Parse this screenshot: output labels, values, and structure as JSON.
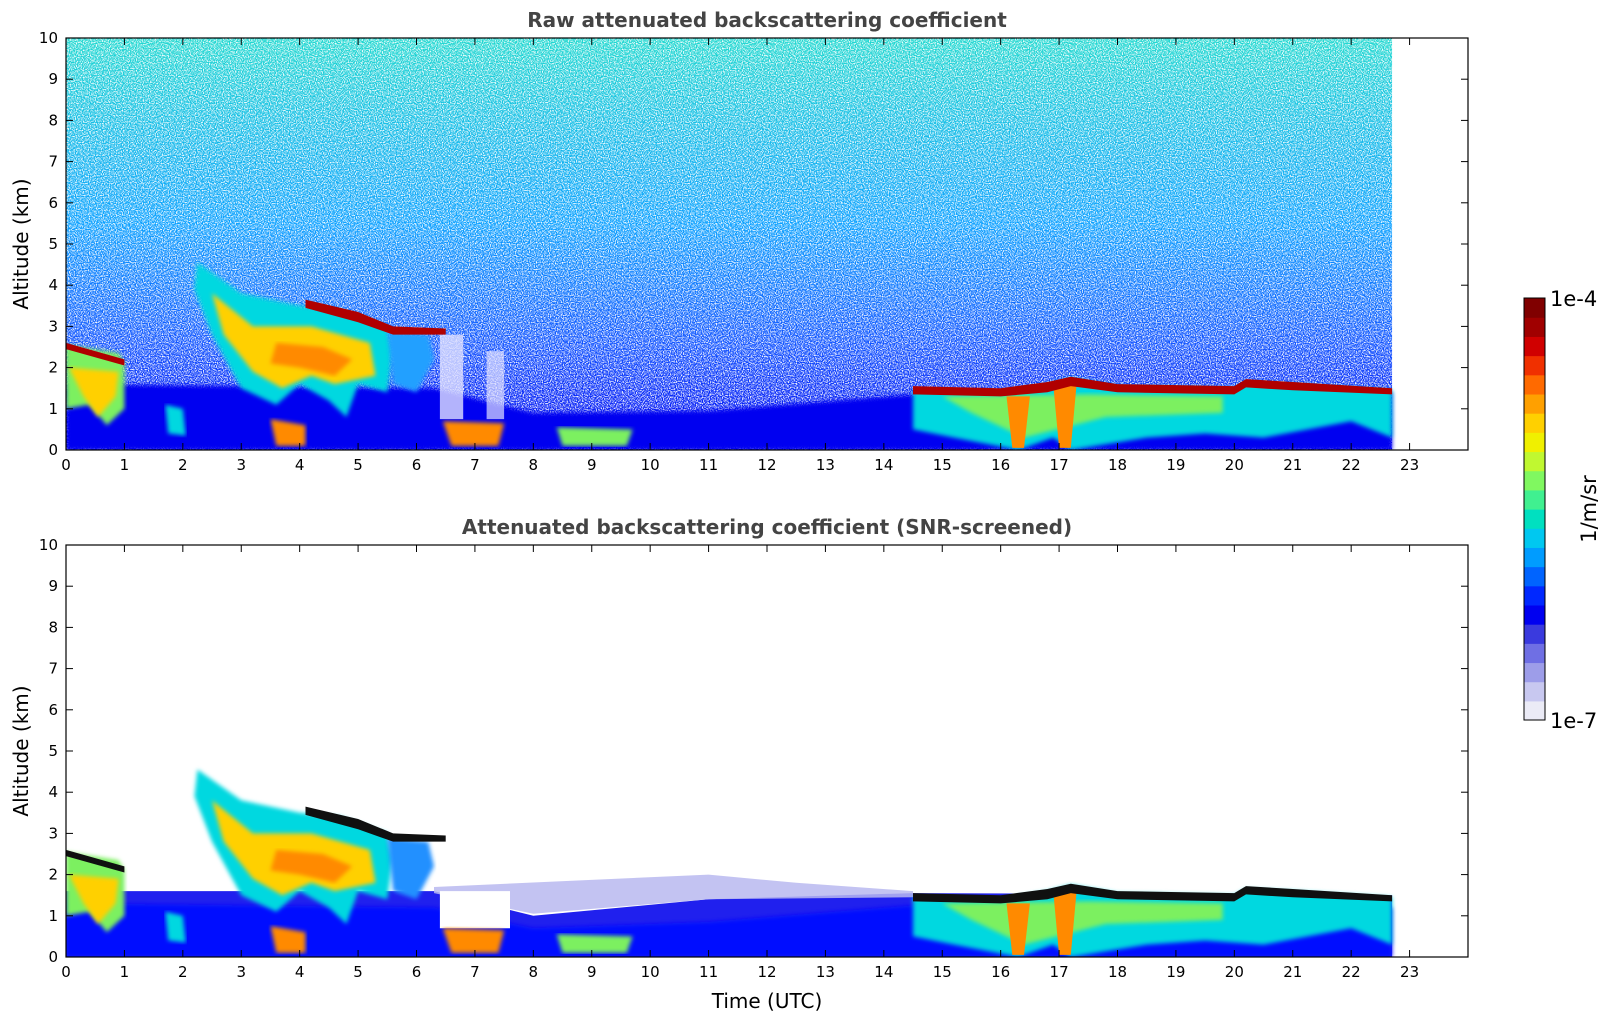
{
  "chart_data": [
    {
      "type": "heatmap",
      "title": "Raw attenuated backscattering coefficient",
      "xlabel": "",
      "ylabel": "Altitude (km)",
      "xlim": [
        0,
        24
      ],
      "ylim": [
        0,
        10
      ],
      "xticks": [
        "0",
        "1",
        "2",
        "3",
        "4",
        "5",
        "6",
        "7",
        "8",
        "9",
        "10",
        "11",
        "12",
        "13",
        "14",
        "15",
        "16",
        "17",
        "18",
        "19",
        "20",
        "21",
        "22",
        "23"
      ],
      "yticks": [
        "0",
        "1",
        "2",
        "3",
        "4",
        "5",
        "6",
        "7",
        "8",
        "9",
        "10"
      ],
      "data_end_time": 22.7,
      "cloud_layers": [
        {
          "start": 0.0,
          "end": 1.0,
          "top_km": 2.55,
          "base_km": 2.1
        },
        {
          "start": 2.3,
          "end": 5.5,
          "top_km": 4.5,
          "base_km": 1.2
        },
        {
          "start": 4.0,
          "end": 6.5,
          "top_km": 3.6,
          "base_km": 2.7
        },
        {
          "start": 14.5,
          "end": 22.7,
          "top_km": 1.6,
          "base_km": 1.35
        }
      ]
    },
    {
      "type": "heatmap",
      "title": "Attenuated backscattering coefficient (SNR-screened)",
      "xlabel": "Time (UTC)",
      "ylabel": "Altitude (km)",
      "xlim": [
        0,
        24
      ],
      "ylim": [
        0,
        10
      ],
      "xticks": [
        "0",
        "1",
        "2",
        "3",
        "4",
        "5",
        "6",
        "7",
        "8",
        "9",
        "10",
        "11",
        "12",
        "13",
        "14",
        "15",
        "16",
        "17",
        "18",
        "19",
        "20",
        "21",
        "22",
        "23"
      ],
      "yticks": [
        "0",
        "1",
        "2",
        "3",
        "4",
        "5",
        "6",
        "7",
        "8",
        "9",
        "10"
      ],
      "data_end_time": 22.7,
      "boundary_layer_top_km": [
        [
          0,
          1.6
        ],
        [
          6.3,
          1.6
        ],
        [
          8,
          1.0
        ],
        [
          11,
          1.4
        ],
        [
          14.5,
          1.55
        ],
        [
          22.7,
          1.5
        ]
      ]
    }
  ],
  "colorbar": {
    "label": "1/m/sr",
    "max_label": "1e-4",
    "min_label": "1e-7",
    "colors": [
      "#ebebf6",
      "#c8c8f0",
      "#9d9de9",
      "#6f6fe4",
      "#3a3ade",
      "#0000f0",
      "#0028ff",
      "#0064ff",
      "#009cff",
      "#00c8f0",
      "#00e0c0",
      "#40f090",
      "#80f860",
      "#c0f830",
      "#f0f000",
      "#ffd000",
      "#ffa000",
      "#ff6a00",
      "#f03000",
      "#d00000",
      "#a00000",
      "#800000"
    ]
  }
}
